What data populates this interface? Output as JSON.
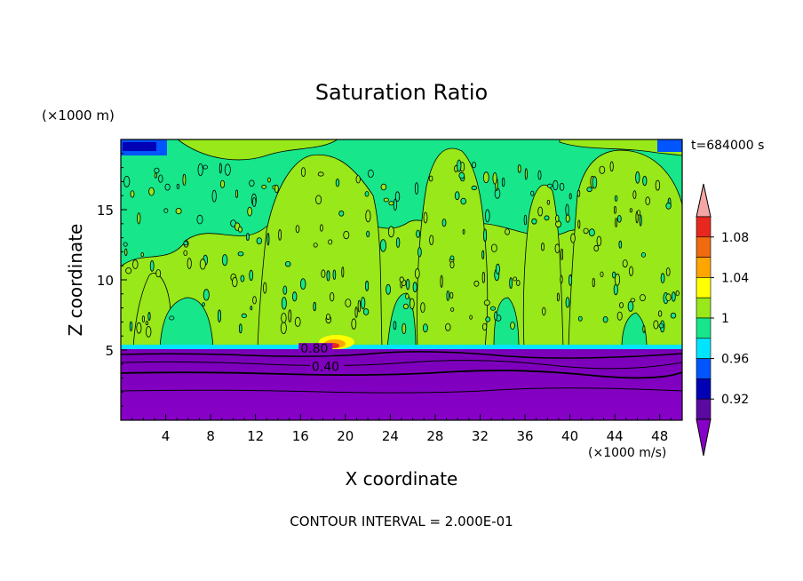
{
  "chart_data": {
    "type": "heatmap",
    "title": "Saturation Ratio",
    "xlabel": "X coordinate",
    "ylabel": "Z coordinate",
    "x_unit": "(×1000 m/s)",
    "y_unit": "(×1000 m)",
    "time_label": "t=684000 s",
    "footer": "CONTOUR INTERVAL = 2.000E-01",
    "xlim": [
      0,
      50
    ],
    "ylim": [
      0,
      20
    ],
    "x_ticks": [
      4,
      8,
      12,
      16,
      20,
      24,
      28,
      32,
      36,
      40,
      44,
      48
    ],
    "y_ticks": [
      5,
      10,
      15
    ],
    "contour_labels": [
      {
        "text": "0.80",
        "x": 16,
        "y": 4.8
      },
      {
        "text": "0.40",
        "x": 17,
        "y": 3.5
      }
    ],
    "levels": [
      0.92,
      0.96,
      1,
      1.04,
      1.08
    ],
    "colorbar": {
      "labels": [
        "1.08",
        "1.04",
        "1",
        "0.96",
        "0.92"
      ],
      "colors": [
        "#f4a6a6",
        "#e8281e",
        "#f06a0f",
        "#ffa500",
        "#ffff00",
        "#98e81a",
        "#17e68a",
        "#00e5ff",
        "#0055ff",
        "#0000b4",
        "#5a0aa0",
        "#8700c8"
      ]
    },
    "regions": {
      "moist_level_z": 5,
      "dry_layer": {
        "z": [
          0,
          5
        ],
        "value": "< 0.92"
      },
      "saturated_columns_x": [
        [
          3,
          6
        ],
        [
          14,
          22
        ],
        [
          42,
          47
        ]
      ],
      "supersaturated_spot": {
        "x": 19,
        "z": 5.5
      }
    }
  }
}
